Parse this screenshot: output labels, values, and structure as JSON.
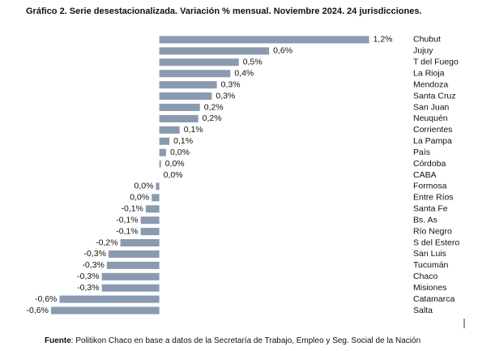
{
  "chart_data": {
    "type": "barh",
    "title": "Gráfico 2. Serie desestacionalizada. Variación % mensual. Noviembre 2024. 24 jurisdicciones.",
    "categories": [
      "Chubut",
      "Jujuy",
      "T del Fuego",
      "La Rioja",
      "Mendoza",
      "Santa Cruz",
      "San Juan",
      "Neuquén",
      "Corrientes",
      "La Pampa",
      "País",
      "Córdoba",
      "CABA",
      "Formosa",
      "Entre Ríos",
      "Santa Fe",
      "Bs. As",
      "Río Negro",
      "S del Estero",
      "San Luis",
      "Tucumán",
      "Chaco",
      "Misiones",
      "Catamarca",
      "Salta"
    ],
    "values": [
      1.24,
      0.649,
      0.47,
      0.42,
      0.34,
      0.31,
      0.24,
      0.23,
      0.12,
      0.06,
      0.04,
      0.01,
      0.0,
      -0.02,
      -0.045,
      -0.08,
      -0.11,
      -0.11,
      -0.23,
      -0.3,
      -0.31,
      -0.34,
      -0.34,
      -0.59,
      -0.64
    ],
    "value_labels": [
      "1,2%",
      "0,6%",
      "0,5%",
      "0,4%",
      "0,3%",
      "0,3%",
      "0,2%",
      "0,2%",
      "0,1%",
      "0,1%",
      "0,0%",
      "0,0%",
      "0,0%",
      "0,0%",
      "0,0%",
      "-0,1%",
      "-0,1%",
      "-0,1%",
      "-0,2%",
      "-0,3%",
      "-0,3%",
      "-0,3%",
      "-0,3%",
      "-0,6%",
      "-0,6%"
    ],
    "color": "#8a9ab0",
    "xlim": [
      -0.75,
      1.4
    ],
    "source_label": "Fuente",
    "source_text": ": Politikon Chaco en base a datos de la Secretaría de Trabajo, Empleo y Seg. Social de la Nación"
  }
}
